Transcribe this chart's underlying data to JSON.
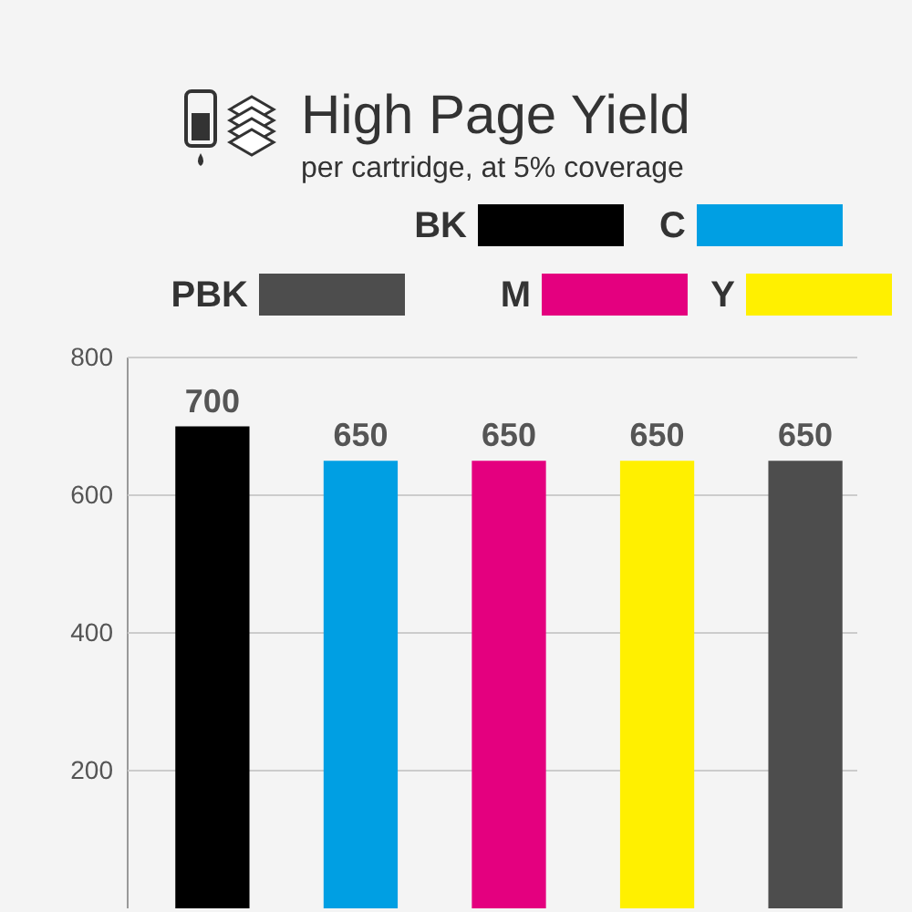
{
  "chart_data": {
    "type": "bar",
    "title": "High Page Yield",
    "subtitle": "per cartridge, at 5% coverage",
    "categories": [
      null,
      null,
      null,
      null,
      null
    ],
    "series": [
      {
        "name": "BK",
        "color": "#000000",
        "values": [
          700,
          null,
          null,
          null,
          null
        ]
      },
      {
        "name": "C",
        "color": "#009fe3",
        "values": [
          null,
          650,
          null,
          null,
          null
        ]
      },
      {
        "name": "M",
        "color": "#e4007f",
        "values": [
          null,
          null,
          650,
          null,
          null
        ]
      },
      {
        "name": "Y",
        "color": "#fff000",
        "values": [
          null,
          null,
          null,
          650,
          null
        ]
      },
      {
        "name": "PBK",
        "color": "#4d4d4d",
        "values": [
          null,
          null,
          null,
          null,
          650
        ]
      }
    ],
    "ylim": [
      0,
      800
    ],
    "yticks": [
      200,
      400,
      600,
      800
    ],
    "grid": "y",
    "data_labels": true,
    "legend": "top"
  }
}
